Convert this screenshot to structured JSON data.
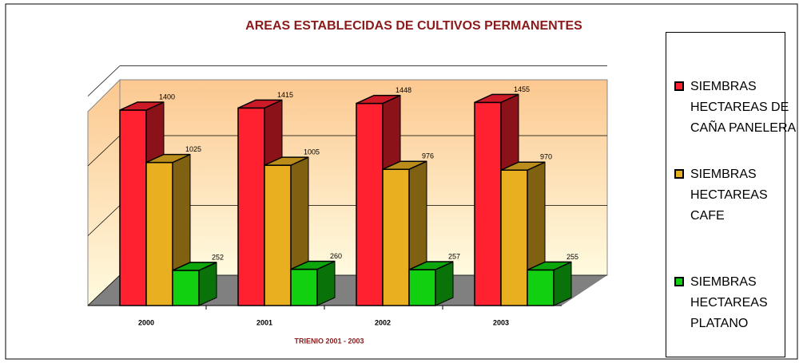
{
  "chart_data": {
    "type": "bar3d",
    "title": "AREAS ESTABLECIDAS DE CULTIVOS PERMANENTES",
    "x_label": "TRIENIO 2001 - 2003",
    "categories": [
      "2000",
      "2001",
      "2002",
      "2003"
    ],
    "series": [
      {
        "name": "SIEMBRAS HECTAREAS DE CAÑA PANELERA",
        "color": "#ff2030",
        "values": [
          1400,
          1415,
          1448,
          1455
        ]
      },
      {
        "name": "SIEMBRAS HECTAREAS CAFE",
        "color": "#e8b020",
        "values": [
          1025,
          1005,
          976,
          970
        ]
      },
      {
        "name": "SIEMBRAS HECTAREAS PLATANO",
        "color": "#10d010",
        "values": [
          252,
          260,
          257,
          255
        ]
      }
    ],
    "ylim": [
      0,
      1600
    ],
    "yticks": [
      0,
      500,
      1000,
      1500
    ],
    "grid": true
  }
}
